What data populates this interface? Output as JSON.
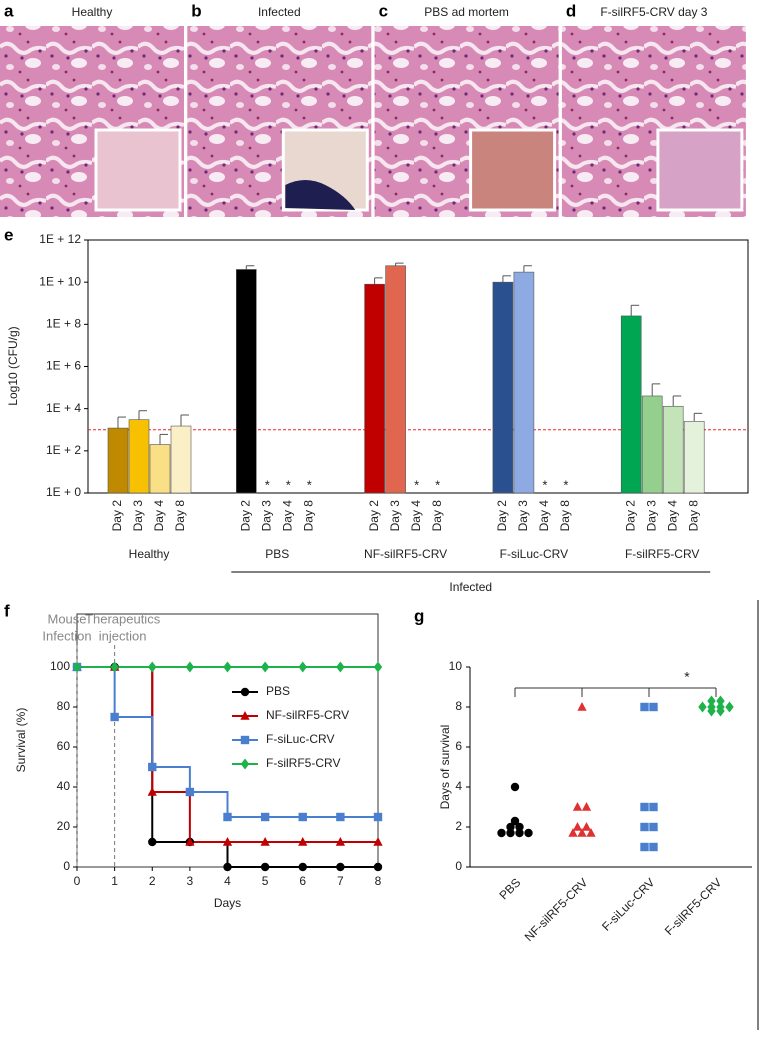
{
  "images": [
    {
      "letter": "a",
      "title": "Healthy"
    },
    {
      "letter": "b",
      "title": "Infected"
    },
    {
      "letter": "c",
      "title": "PBS ad mortem"
    },
    {
      "letter": "d",
      "title": "F-silRF5-CRV day 3"
    }
  ],
  "chart_data": [
    {
      "type": "bar",
      "letter": "e",
      "ylabel": "Log10 (CFU/g)",
      "log_scale": true,
      "ylim": [
        1,
        1000000000000
      ],
      "yticks": [
        {
          "value": 1,
          "label": "1E + 0"
        },
        {
          "value": 100,
          "label": "1E + 2"
        },
        {
          "value": 10000,
          "label": "1E + 4"
        },
        {
          "value": 1000000,
          "label": "1E + 6"
        },
        {
          "value": 100000000,
          "label": "1E + 8"
        },
        {
          "value": 10000000000,
          "label": "1E + 10"
        },
        {
          "value": 1000000000000,
          "label": "1E + 12"
        }
      ],
      "reference_line": {
        "value": 1000,
        "color": "#e8262c"
      },
      "group_label": "Infected",
      "groups": [
        {
          "name": "Healthy",
          "infected": false,
          "categories": [
            "Day 2",
            "Day 3",
            "Day 4",
            "Day 8"
          ],
          "values": [
            1200,
            3000,
            200,
            1500
          ],
          "error_top": [
            4000,
            8000,
            600,
            5000
          ],
          "value_labels": [
            null,
            null,
            null,
            null
          ],
          "colors": [
            "#c08a00",
            "#f7c000",
            "#f9df86",
            "#fbefc6"
          ]
        },
        {
          "name": "PBS",
          "infected": true,
          "categories": [
            "Day 2",
            "Day 3",
            "Day 4",
            "Day 8"
          ],
          "values": [
            40000000000,
            null,
            null,
            null
          ],
          "error_top": [
            60000000000,
            null,
            null,
            null
          ],
          "value_labels": [
            null,
            "*",
            "*",
            "*"
          ],
          "colors": [
            "#000000",
            "#000000",
            "#000000",
            "#000000"
          ]
        },
        {
          "name": "NF-silRF5-CRV",
          "infected": true,
          "categories": [
            "Day 2",
            "Day 3",
            "Day 4",
            "Day 8"
          ],
          "values": [
            8000000000,
            60000000000,
            null,
            null
          ],
          "error_top": [
            16000000000,
            80000000000,
            null,
            null
          ],
          "value_labels": [
            null,
            null,
            "*",
            "*"
          ],
          "colors": [
            "#c00000",
            "#e06650",
            "#e06650",
            "#e06650"
          ]
        },
        {
          "name": "F-siLuc-CRV",
          "infected": true,
          "categories": [
            "Day 2",
            "Day 3",
            "Day 4",
            "Day 8"
          ],
          "values": [
            10000000000,
            30000000000,
            null,
            null
          ],
          "error_top": [
            20000000000,
            60000000000,
            null,
            null
          ],
          "value_labels": [
            null,
            null,
            "*",
            "*"
          ],
          "colors": [
            "#2b5090",
            "#8eaae2",
            "#8eaae2",
            "#8eaae2"
          ]
        },
        {
          "name": "F-silRF5-CRV",
          "infected": true,
          "categories": [
            "Day 2",
            "Day 3",
            "Day 4",
            "Day 8"
          ],
          "values": [
            250000000,
            40000,
            13000,
            2500
          ],
          "error_top": [
            800000000,
            150000,
            40000,
            6000
          ],
          "value_labels": [
            null,
            null,
            null,
            null
          ],
          "colors": [
            "#00a651",
            "#94cf8e",
            "#c3e3b8",
            "#e4f2dc"
          ]
        }
      ]
    },
    {
      "type": "line",
      "letter": "f",
      "step": true,
      "xlabel": "Days",
      "ylabel": "Survival (%)",
      "x": [
        0,
        1,
        2,
        3,
        4,
        5,
        6,
        7,
        8
      ],
      "xlim": [
        0,
        8
      ],
      "xticks": [
        0,
        1,
        2,
        3,
        4,
        5,
        6,
        7,
        8
      ],
      "ylim": [
        0,
        126.5
      ],
      "yticks": [
        0,
        20,
        40,
        60,
        80,
        100
      ],
      "legend": "upper right",
      "annotations": [
        {
          "x": 0,
          "lines": [
            "Mouse",
            "Infection"
          ]
        },
        {
          "x": 1,
          "lines": [
            "Therapeutics",
            "injection"
          ]
        }
      ],
      "series": [
        {
          "name": "PBS",
          "color": "#000000",
          "marker": "circle",
          "values": [
            100,
            100,
            12.5,
            12.5,
            0,
            0,
            0,
            0,
            0
          ]
        },
        {
          "name": "NF-silRF5-CRV",
          "color": "#c00000",
          "marker": "triangle",
          "values": [
            100,
            100,
            37.5,
            12.5,
            12.5,
            12.5,
            12.5,
            12.5,
            12.5
          ]
        },
        {
          "name": "F-siLuc-CRV",
          "color": "#4a7fd0",
          "marker": "square",
          "values": [
            100,
            75,
            50,
            37.5,
            25,
            25,
            25,
            25,
            25
          ]
        },
        {
          "name": "F-silRF5-CRV",
          "color": "#1db34a",
          "marker": "diamond",
          "values": [
            100,
            100,
            100,
            100,
            100,
            100,
            100,
            100,
            100
          ]
        }
      ]
    },
    {
      "type": "strip",
      "letter": "g",
      "ylabel": "Days of survival",
      "ylim": [
        0,
        10
      ],
      "yticks": [
        0,
        2,
        4,
        6,
        8,
        10
      ],
      "significance": "*",
      "groups": [
        {
          "name": "PBS",
          "color": "#000000",
          "marker": "circle",
          "values": [
            4,
            2.3,
            2,
            2,
            1.7,
            1.7,
            1.7,
            1.7
          ]
        },
        {
          "name": "NF-silRF5-CRV",
          "color": "#e03030",
          "marker": "triangle",
          "values": [
            8,
            3,
            3,
            2,
            2,
            1.7,
            1.7,
            1.7
          ]
        },
        {
          "name": "F-siLuc-CRV",
          "color": "#4a7fd0",
          "marker": "square",
          "values": [
            8,
            8,
            3,
            3,
            2,
            2,
            1,
            1
          ]
        },
        {
          "name": "F-silRF5-CRV",
          "color": "#1db34a",
          "marker": "diamond",
          "values": [
            8.3,
            8.3,
            8,
            8,
            8,
            8,
            7.8,
            7.8
          ]
        }
      ]
    }
  ]
}
